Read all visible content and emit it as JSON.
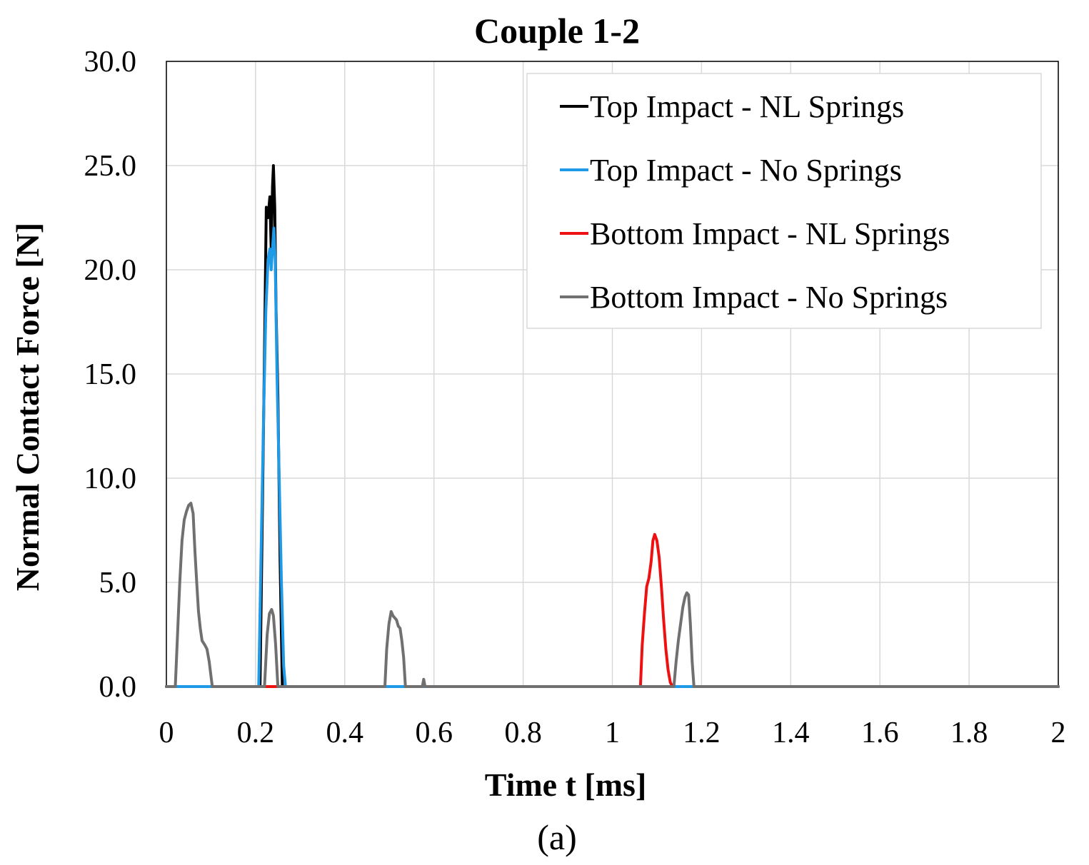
{
  "chart_data": {
    "type": "line",
    "title": "Couple 1-2",
    "xlabel": "Time t [ms]",
    "ylabel": "Normal Contact Force [N]",
    "caption": "(a)",
    "xlim": [
      0,
      2
    ],
    "ylim": [
      0,
      30
    ],
    "x_ticks": [
      0,
      0.2,
      0.4,
      0.6,
      0.8,
      1,
      1.2,
      1.4,
      1.6,
      1.8,
      2
    ],
    "x_tick_labels": [
      "0",
      "0.2",
      "0.4",
      "0.6",
      "0.8",
      "1",
      "1.2",
      "1.4",
      "1.6",
      "1.8",
      "2"
    ],
    "y_ticks": [
      0,
      5,
      10,
      15,
      20,
      25,
      30
    ],
    "y_tick_labels": [
      "0.0",
      "5.0",
      "10.0",
      "15.0",
      "20.0",
      "25.0",
      "30.0"
    ],
    "grid": true,
    "legend_position": "top-right",
    "series": [
      {
        "name": "Top Impact - NL Springs",
        "color": "#000000",
        "points": [
          [
            0,
            0
          ],
          [
            0.21,
            0
          ],
          [
            0.22,
            16
          ],
          [
            0.224,
            23
          ],
          [
            0.228,
            22.5
          ],
          [
            0.232,
            23.5
          ],
          [
            0.235,
            21
          ],
          [
            0.238,
            24
          ],
          [
            0.24,
            25
          ],
          [
            0.243,
            23
          ],
          [
            0.246,
            18
          ],
          [
            0.25,
            14
          ],
          [
            0.255,
            6
          ],
          [
            0.26,
            0
          ],
          [
            2,
            0
          ]
        ]
      },
      {
        "name": "Top Impact - No Springs",
        "color": "#1f9ae6",
        "points": [
          [
            0,
            0
          ],
          [
            0.207,
            0
          ],
          [
            0.212,
            6
          ],
          [
            0.218,
            13
          ],
          [
            0.223,
            18
          ],
          [
            0.228,
            20.5
          ],
          [
            0.232,
            21
          ],
          [
            0.235,
            20
          ],
          [
            0.238,
            21
          ],
          [
            0.241,
            22
          ],
          [
            0.244,
            20.5
          ],
          [
            0.248,
            15
          ],
          [
            0.253,
            10
          ],
          [
            0.258,
            5
          ],
          [
            0.263,
            1
          ],
          [
            0.267,
            0
          ],
          [
            2,
            0
          ]
        ]
      },
      {
        "name": "Bottom Impact - NL Springs",
        "color": "#ee1111",
        "points": [
          [
            0,
            0
          ],
          [
            1.063,
            0
          ],
          [
            1.067,
            2
          ],
          [
            1.072,
            3.5
          ],
          [
            1.077,
            4.8
          ],
          [
            1.082,
            5.2
          ],
          [
            1.087,
            6
          ],
          [
            1.091,
            7
          ],
          [
            1.095,
            7.3
          ],
          [
            1.1,
            7.0
          ],
          [
            1.105,
            6.2
          ],
          [
            1.11,
            4.8
          ],
          [
            1.115,
            3.2
          ],
          [
            1.12,
            1.8
          ],
          [
            1.125,
            0.8
          ],
          [
            1.13,
            0.2
          ],
          [
            1.135,
            0
          ],
          [
            2,
            0
          ]
        ]
      },
      {
        "name": "Bottom Impact - No Springs",
        "color": "#707070",
        "points": [
          [
            0,
            0
          ],
          [
            0.02,
            0
          ],
          [
            0.025,
            2.5
          ],
          [
            0.03,
            5
          ],
          [
            0.035,
            7
          ],
          [
            0.04,
            8
          ],
          [
            0.045,
            8.4
          ],
          [
            0.05,
            8.7
          ],
          [
            0.055,
            8.8
          ],
          [
            0.06,
            8.3
          ],
          [
            0.064,
            6.5
          ],
          [
            0.068,
            5
          ],
          [
            0.072,
            3.6
          ],
          [
            0.076,
            2.8
          ],
          [
            0.08,
            2.2
          ],
          [
            0.086,
            2.0
          ],
          [
            0.091,
            1.8
          ],
          [
            0.096,
            1.2
          ],
          [
            0.1,
            0.5
          ],
          [
            0.103,
            0
          ],
          [
            0.22,
            0
          ],
          [
            0.226,
            2.5
          ],
          [
            0.231,
            3.5
          ],
          [
            0.236,
            3.7
          ],
          [
            0.24,
            3.4
          ],
          [
            0.245,
            2
          ],
          [
            0.25,
            0
          ],
          [
            0.49,
            0
          ],
          [
            0.494,
            1.8
          ],
          [
            0.499,
            3
          ],
          [
            0.504,
            3.6
          ],
          [
            0.508,
            3.4
          ],
          [
            0.512,
            3.3
          ],
          [
            0.516,
            3.2
          ],
          [
            0.52,
            2.9
          ],
          [
            0.524,
            2.8
          ],
          [
            0.528,
            2.2
          ],
          [
            0.532,
            1.4
          ],
          [
            0.536,
            0
          ],
          [
            0.574,
            0
          ],
          [
            0.577,
            0.35
          ],
          [
            0.58,
            0
          ],
          [
            1.138,
            0
          ],
          [
            1.143,
            1.2
          ],
          [
            1.148,
            2.2
          ],
          [
            1.153,
            3
          ],
          [
            1.158,
            3.8
          ],
          [
            1.163,
            4.3
          ],
          [
            1.167,
            4.5
          ],
          [
            1.171,
            4.4
          ],
          [
            1.175,
            3
          ],
          [
            1.179,
            1.2
          ],
          [
            1.183,
            0
          ],
          [
            2,
            0
          ]
        ]
      }
    ]
  }
}
